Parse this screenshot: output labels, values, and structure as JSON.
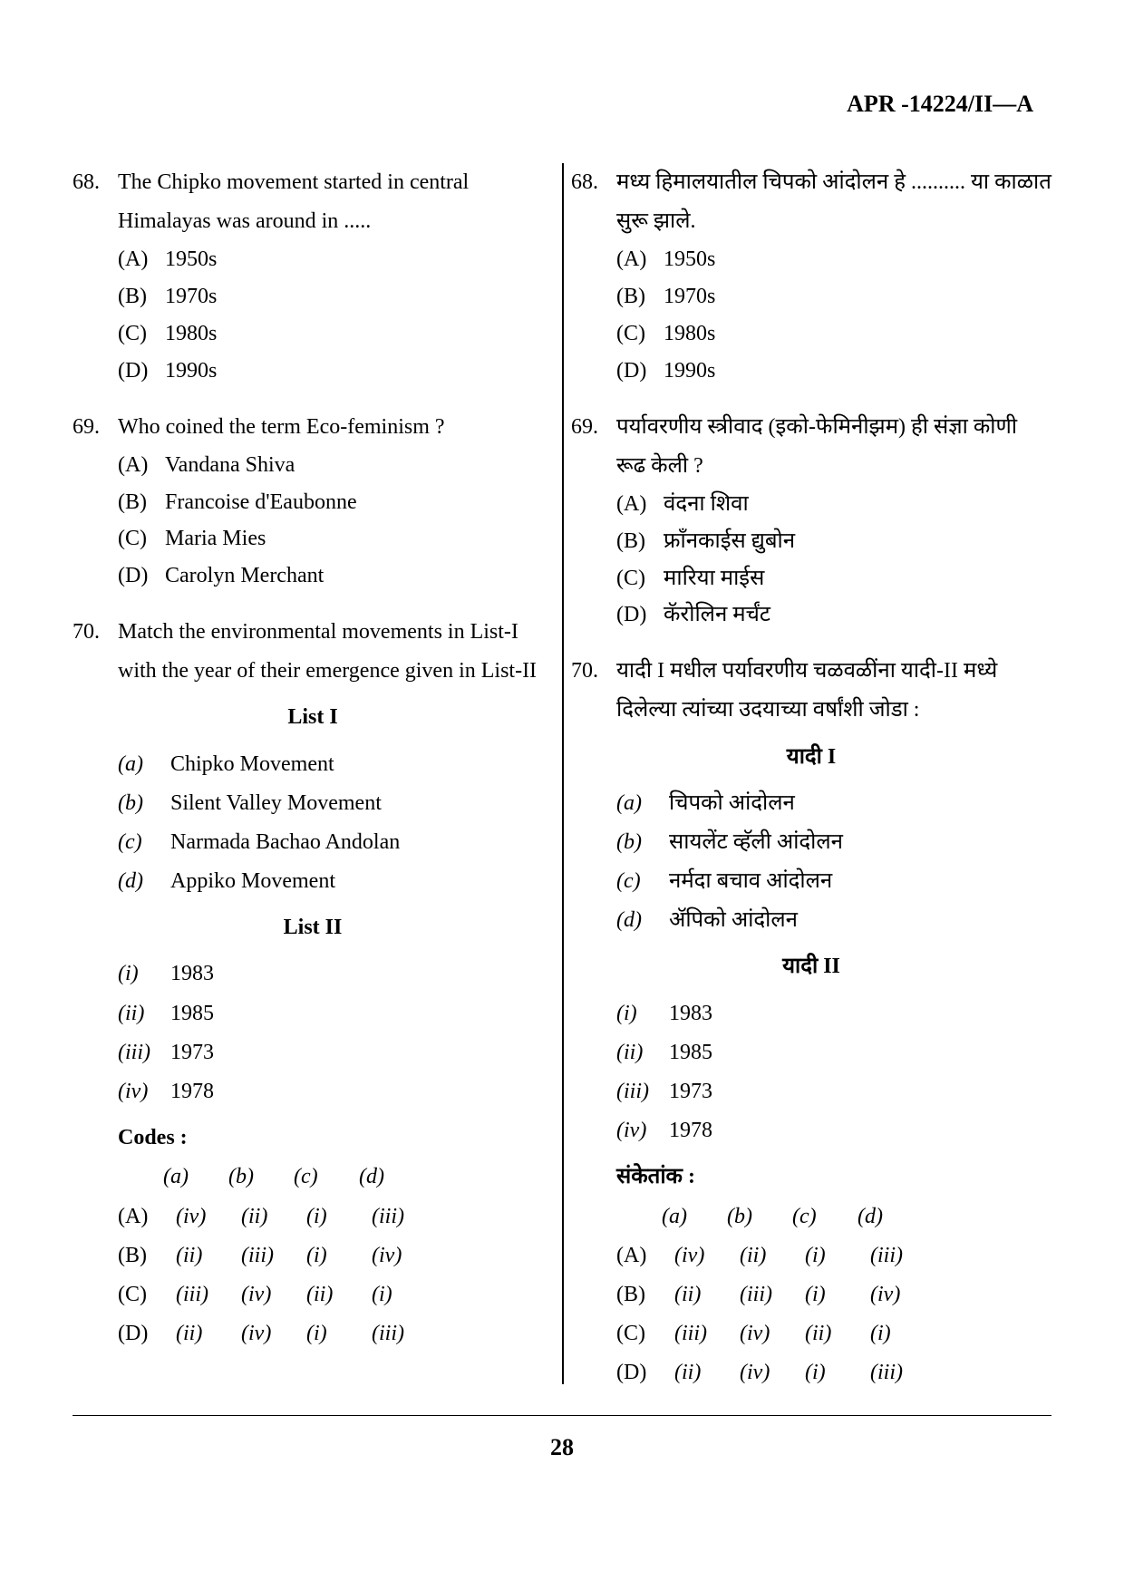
{
  "header": "APR -14224/II—A",
  "pageNumber": "28",
  "left": {
    "q68": {
      "num": "68.",
      "text": "The Chipko movement started in central Himalayas was around in .....",
      "options": {
        "A": "1950s",
        "B": "1970s",
        "C": "1980s",
        "D": "1990s"
      }
    },
    "q69": {
      "num": "69.",
      "text": "Who coined the term Eco-feminism ?",
      "options": {
        "A": "Vandana Shiva",
        "B": "Francoise d'Eaubonne",
        "C": "Maria Mies",
        "D": "Carolyn Merchant"
      }
    },
    "q70": {
      "num": "70.",
      "text": "Match the environmental movements in List-I with the year of their emergence given in List-II",
      "list1Title": "List I",
      "list1": {
        "a": "Chipko Movement",
        "b": "Silent Valley Movement",
        "c": "Narmada Bachao Andolan",
        "d": "Appiko Movement"
      },
      "list2Title": "List II",
      "list2": {
        "i": "1983",
        "ii": "1985",
        "iii": "1973",
        "iv": "1978"
      },
      "codesTitle": "Codes :",
      "codesHeader": {
        "a": "(a)",
        "b": "(b)",
        "c": "(c)",
        "d": "(d)"
      },
      "codes": {
        "A": {
          "a": "(iv)",
          "b": "(ii)",
          "c": "(i)",
          "d": "(iii)"
        },
        "B": {
          "a": "(ii)",
          "b": "(iii)",
          "c": "(i)",
          "d": "(iv)"
        },
        "C": {
          "a": "(iii)",
          "b": "(iv)",
          "c": "(ii)",
          "d": "(i)"
        },
        "D": {
          "a": "(ii)",
          "b": "(iv)",
          "c": "(i)",
          "d": "(iii)"
        }
      }
    }
  },
  "right": {
    "q68": {
      "num": "68.",
      "text": "मध्य हिमालयातील चिपको आंदोलन हे .......... या काळात सुरू झाले.",
      "options": {
        "A": "1950s",
        "B": "1970s",
        "C": "1980s",
        "D": "1990s"
      }
    },
    "q69": {
      "num": "69.",
      "text": "पर्यावरणीय स्त्रीवाद (इको-फेमिनीझम) ही संज्ञा कोणी रूढ केली ?",
      "options": {
        "A": "वंदना शिवा",
        "B": "फ्राँनकाईस द्युबोन",
        "C": "मारिया माईस",
        "D": "कॅरोलिन मर्चंट"
      }
    },
    "q70": {
      "num": "70.",
      "text": "यादी I मधील पर्यावरणीय चळवळींना यादी-II मध्ये दिलेल्या त्यांच्या उदयाच्या वर्षांशी जोडा :",
      "list1Title": "यादी I",
      "list1": {
        "a": "चिपको आंदोलन",
        "b": "सायलेंट व्हॅली आंदोलन",
        "c": "नर्मदा बचाव आंदोलन",
        "d": "ॲपिको आंदोलन"
      },
      "list2Title": "यादी II",
      "list2": {
        "i": "1983",
        "ii": "1985",
        "iii": "1973",
        "iv": "1978"
      },
      "codesTitle": "संकेतांक :",
      "codesHeader": {
        "a": "(a)",
        "b": "(b)",
        "c": "(c)",
        "d": "(d)"
      },
      "codes": {
        "A": {
          "a": "(iv)",
          "b": "(ii)",
          "c": "(i)",
          "d": "(iii)"
        },
        "B": {
          "a": "(ii)",
          "b": "(iii)",
          "c": "(i)",
          "d": "(iv)"
        },
        "C": {
          "a": "(iii)",
          "b": "(iv)",
          "c": "(ii)",
          "d": "(i)"
        },
        "D": {
          "a": "(ii)",
          "b": "(iv)",
          "c": "(i)",
          "d": "(iii)"
        }
      }
    }
  }
}
